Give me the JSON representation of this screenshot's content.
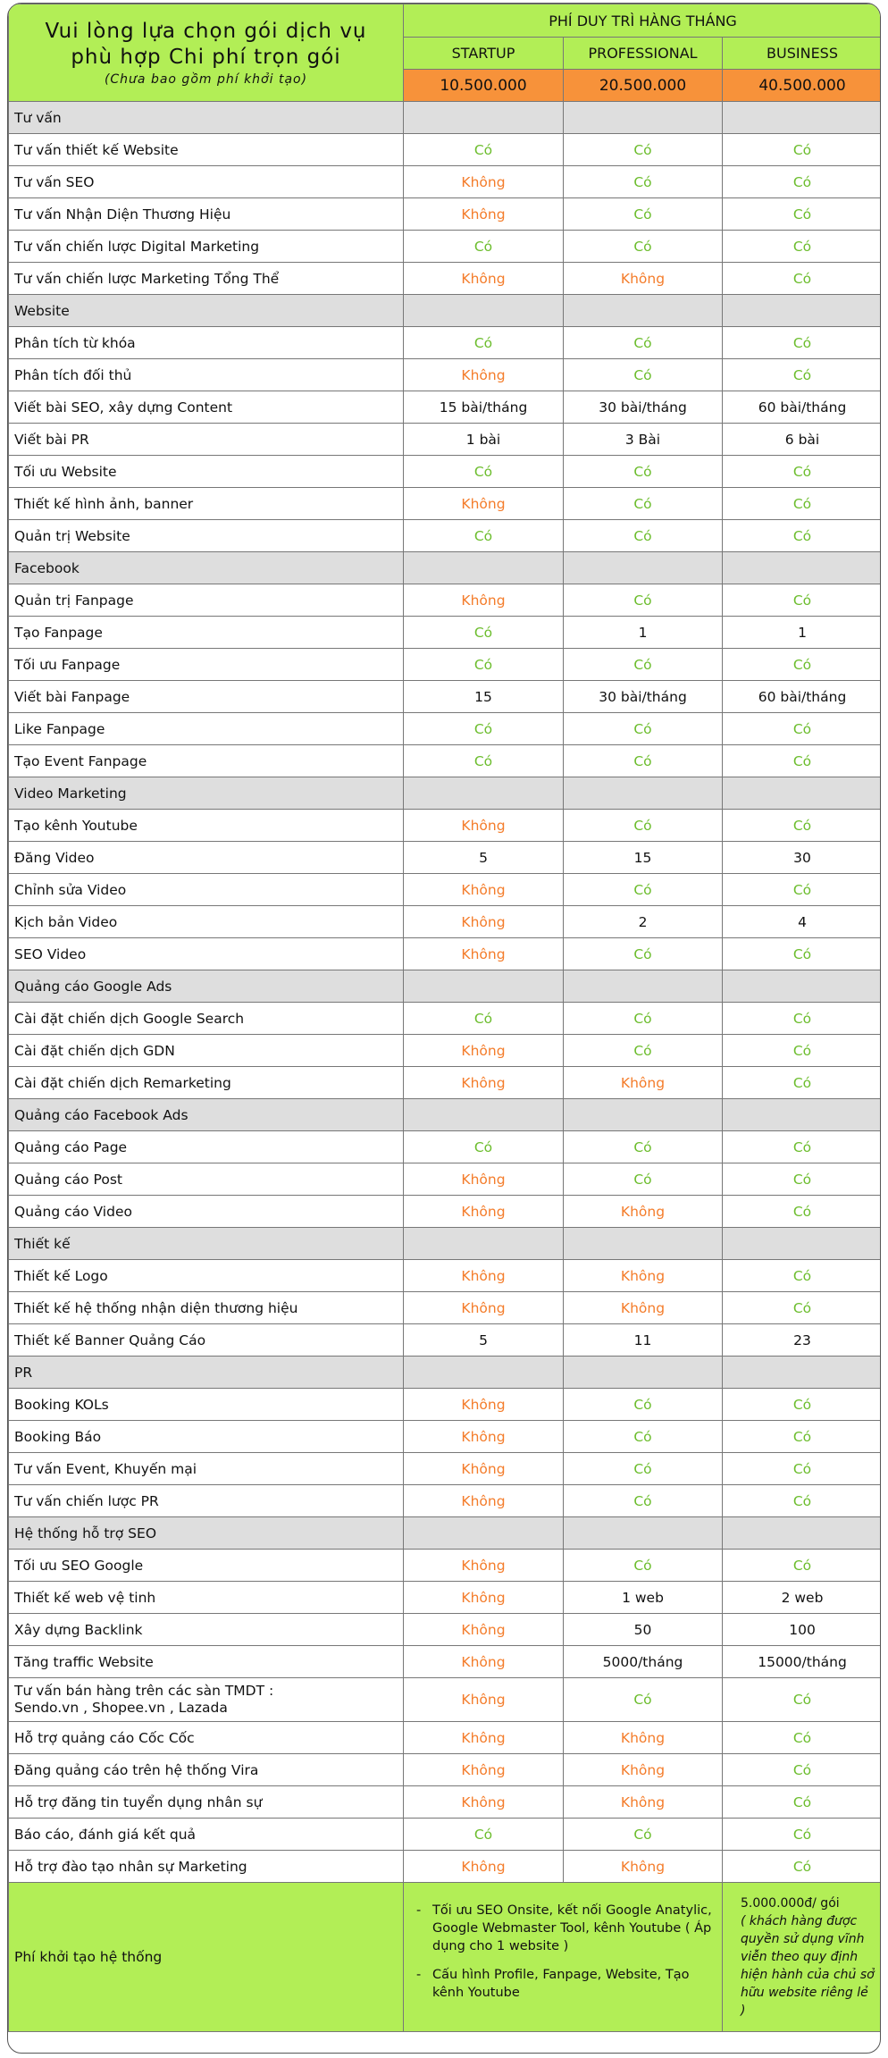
{
  "header": {
    "title_line1": "Vui lòng lựa chọn gói dịch vụ",
    "title_line2": "phù hợp Chi phí trọn gói",
    "subtitle": "(Chưa bao gồm phí khởi tạo)",
    "monthly_fee_label": "PHÍ DUY TRÌ HÀNG THÁNG",
    "plans": [
      "STARTUP",
      "PROFESSIONAL",
      "BUSINESS"
    ],
    "prices": [
      "10.500.000",
      "20.500.000",
      "40.500.000"
    ]
  },
  "colors": {
    "yes": "#6cbd2d",
    "no": "#f47c2a",
    "header_green": "#b2ee56",
    "price_orange": "#f7923a",
    "section_gray": "#dedede"
  },
  "rows": [
    {
      "type": "section",
      "label": "Tư vấn"
    },
    {
      "type": "item",
      "label": "Tư vấn thiết kế Website",
      "values": [
        "Có",
        "Có",
        "Có"
      ]
    },
    {
      "type": "item",
      "label": "Tư vấn SEO",
      "values": [
        "Không",
        "Có",
        "Có"
      ]
    },
    {
      "type": "item",
      "label": "Tư vấn Nhận Diện Thương Hiệu",
      "values": [
        "Không",
        "Có",
        "Có"
      ]
    },
    {
      "type": "item",
      "label": "Tư vấn chiến lược Digital Marketing",
      "values": [
        "Có",
        "Có",
        "Có"
      ]
    },
    {
      "type": "item",
      "label": "Tư vấn chiến lược Marketing Tổng Thể",
      "values": [
        "Không",
        "Không",
        "Có"
      ]
    },
    {
      "type": "section",
      "label": " Website"
    },
    {
      "type": "item",
      "label": "Phân tích từ khóa",
      "values": [
        "Có",
        "Có",
        "Có"
      ]
    },
    {
      "type": "item",
      "label": "Phân tích đối thủ",
      "values": [
        "Không",
        "Có",
        "Có"
      ]
    },
    {
      "type": "item",
      "label": "Viết bài SEO, xây dựng Content",
      "values": [
        "15 bài/tháng",
        "30 bài/tháng",
        "60 bài/tháng"
      ]
    },
    {
      "type": "item",
      "label": "Viết bài PR",
      "values": [
        "1 bài",
        "3 Bài",
        "6 bài"
      ]
    },
    {
      "type": "item",
      "label": "Tối ưu Website",
      "values": [
        "Có",
        "Có",
        "Có"
      ]
    },
    {
      "type": "item",
      "label": "Thiết kế hình ảnh, banner",
      "values": [
        "Không",
        "Có",
        "Có"
      ]
    },
    {
      "type": "item",
      "label": "Quản trị Website",
      "values": [
        "Có",
        "Có",
        "Có"
      ]
    },
    {
      "type": "section",
      "label": "Facebook"
    },
    {
      "type": "item",
      "label": "Quản trị Fanpage",
      "values": [
        "Không",
        "Có",
        "Có"
      ]
    },
    {
      "type": "item",
      "label": "Tạo Fanpage",
      "values": [
        "Có",
        "1",
        "1"
      ]
    },
    {
      "type": "item",
      "label": "Tối ưu Fanpage",
      "values": [
        "Có",
        "Có",
        "Có"
      ]
    },
    {
      "type": "item",
      "label": "Viết bài Fanpage",
      "values": [
        "15",
        "30 bài/tháng",
        "60 bài/tháng"
      ]
    },
    {
      "type": "item",
      "label": "Like Fanpage",
      "values": [
        "Có",
        "Có",
        "Có"
      ]
    },
    {
      "type": "item",
      "label": "Tạo Event Fanpage",
      "values": [
        "Có",
        "Có",
        "Có"
      ]
    },
    {
      "type": "section",
      "label": "Video Marketing"
    },
    {
      "type": "item",
      "label": "Tạo kênh Youtube",
      "values": [
        "Không",
        "Có",
        "Có"
      ]
    },
    {
      "type": "item",
      "label": "Đăng Video",
      "values": [
        "5",
        "15",
        "30"
      ]
    },
    {
      "type": "item",
      "label": "Chỉnh sửa Video",
      "values": [
        "Không",
        "Có",
        "Có"
      ]
    },
    {
      "type": "item",
      "label": "Kịch bản Video",
      "values": [
        "Không",
        "2",
        "4"
      ]
    },
    {
      "type": "item",
      "label": "SEO Video",
      "values": [
        "Không",
        "Có",
        "Có"
      ]
    },
    {
      "type": "section",
      "label": "Quảng cáo Google Ads"
    },
    {
      "type": "item",
      "label": "Cài đặt chiến dịch Google Search",
      "values": [
        "Có",
        "Có",
        "Có"
      ]
    },
    {
      "type": "item",
      "label": "Cài đặt chiến dịch GDN",
      "values": [
        "Không",
        "Có",
        "Có"
      ]
    },
    {
      "type": "item",
      "label": "Cài đặt chiến dịch Remarketing",
      "values": [
        "Không",
        "Không",
        "Có"
      ]
    },
    {
      "type": "section",
      "label": "Quảng cáo Facebook Ads"
    },
    {
      "type": "item",
      "label": "Quảng cáo Page",
      "values": [
        "Có",
        "Có",
        "Có"
      ]
    },
    {
      "type": "item",
      "label": "Quảng cáo Post",
      "values": [
        "Không",
        "Có",
        "Có"
      ]
    },
    {
      "type": "item",
      "label": "Quảng cáo Video",
      "values": [
        "Không",
        "Không",
        "Có"
      ]
    },
    {
      "type": "section",
      "label": "Thiết kế"
    },
    {
      "type": "item",
      "label": "Thiết kế Logo",
      "values": [
        "Không",
        "Không",
        "Có"
      ]
    },
    {
      "type": "item",
      "label": "Thiết kế hệ thống nhận diện thương hiệu",
      "values": [
        "Không",
        "Không",
        "Có"
      ]
    },
    {
      "type": "item",
      "label": "Thiết kế Banner Quảng Cáo",
      "values": [
        "5",
        "11",
        "23"
      ]
    },
    {
      "type": "section",
      "label": "PR"
    },
    {
      "type": "item",
      "label": "Booking KOLs",
      "values": [
        "Không",
        "Có",
        "Có"
      ]
    },
    {
      "type": "item",
      "label": "Booking Báo",
      "values": [
        "Không",
        "Có",
        "Có"
      ]
    },
    {
      "type": "item",
      "label": "Tư vấn Event, Khuyến mại",
      "values": [
        "Không",
        "Có",
        "Có"
      ]
    },
    {
      "type": "item",
      "label": "Tư vấn chiến lược PR",
      "values": [
        "Không",
        "Có",
        "Có"
      ]
    },
    {
      "type": "section",
      "label": "Hệ thống hỗ trợ SEO"
    },
    {
      "type": "item",
      "label": "Tối ưu SEO Google",
      "values": [
        "Không",
        "Có",
        "Có"
      ]
    },
    {
      "type": "item",
      "label": "Thiết kế web vệ tinh",
      "values": [
        "Không",
        "1 web",
        "2 web"
      ]
    },
    {
      "type": "item",
      "label": "Xây dựng Backlink",
      "values": [
        "Không",
        "50",
        "100"
      ]
    },
    {
      "type": "item",
      "label": "Tăng traffic Website",
      "values": [
        "Không",
        "5000/tháng",
        "15000/tháng"
      ]
    },
    {
      "type": "item",
      "tall": true,
      "label": "Tư vấn bán hàng trên các sàn TMDT :\nSendo.vn , Shopee.vn , Lazada",
      "values": [
        "Không",
        "Có",
        "Có"
      ]
    },
    {
      "type": "item",
      "label": "Hỗ trợ quảng cáo Cốc Cốc",
      "values": [
        "Không",
        "Không",
        "Có"
      ]
    },
    {
      "type": "item",
      "label": "Đăng quảng cáo trên hệ thống Vira",
      "values": [
        "Không",
        "Không",
        "Có"
      ]
    },
    {
      "type": "item",
      "label": "Hỗ trợ đăng tin tuyển dụng nhân sự",
      "values": [
        "Không",
        "Không",
        "Có"
      ]
    },
    {
      "type": "item",
      "label": "Báo cáo, đánh giá kết quả",
      "values": [
        "Có",
        "Có",
        "Có"
      ]
    },
    {
      "type": "item",
      "label": "Hỗ trợ đào tạo nhân sự Marketing",
      "values": [
        "Không",
        "Không",
        "Có"
      ]
    }
  ],
  "footer": {
    "label": "Phí khởi tạo hệ thống",
    "items": [
      "Tối ưu SEO Onsite, kết nối Google Anatylic, Google Webmaster Tool, kênh Youtube ( Áp dụng cho 1 website )",
      "Cấu hình Profile, Fanpage, Website, Tạo kênh Youtube"
    ],
    "price": "5.000.000đ/ gói",
    "price_note": "( khách hàng được quyền sử dụng vĩnh viễn theo quy định hiện hành của chủ sở hữu website riêng lẻ )"
  }
}
